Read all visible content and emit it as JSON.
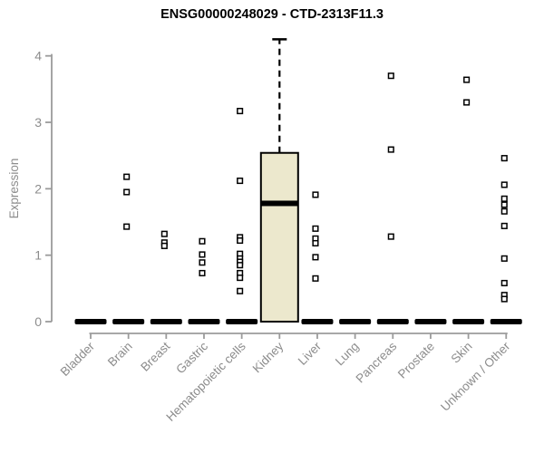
{
  "chart_data": {
    "type": "boxplot",
    "title": "ENSG00000248029 - CTD-2313F11.3",
    "ylabel": "Expression",
    "ylim": [
      0,
      4
    ],
    "yticks": [
      0,
      1,
      2,
      3,
      4
    ],
    "grid": false,
    "legend": "none",
    "categories": [
      "Bladder",
      "Brain",
      "Breast",
      "Gastric",
      "Hematopoietic cells",
      "Kidney",
      "Liver",
      "Lung",
      "Pancreas",
      "Prostate",
      "Skin",
      "Unknown / Other"
    ],
    "series": [
      {
        "label": "Bladder",
        "box": {
          "flat": true,
          "median": 0
        },
        "points": []
      },
      {
        "label": "Brain",
        "box": {
          "flat": true,
          "median": 0
        },
        "points": [
          2.18,
          1.95,
          1.43
        ]
      },
      {
        "label": "Breast",
        "box": {
          "flat": true,
          "median": 0
        },
        "points": [
          1.32,
          1.19,
          1.14
        ]
      },
      {
        "label": "Gastric",
        "box": {
          "flat": true,
          "median": 0
        },
        "points": [
          1.21,
          1.01,
          0.89,
          0.73
        ]
      },
      {
        "label": "Hematopoietic cells",
        "box": {
          "flat": true,
          "median": 0
        },
        "points": [
          3.17,
          2.12,
          1.27,
          1.22,
          1.02,
          0.95,
          0.9,
          0.85,
          0.73,
          0.66,
          0.46
        ]
      },
      {
        "label": "Kidney",
        "box": {
          "flat": false,
          "q1": 0,
          "median": 1.78,
          "q3": 2.54,
          "whisker_high": 4.25,
          "whisker_low": 0
        },
        "points": []
      },
      {
        "label": "Liver",
        "box": {
          "flat": true,
          "median": 0
        },
        "points": [
          1.91,
          1.4,
          1.25,
          1.18,
          0.97,
          0.65
        ]
      },
      {
        "label": "Lung",
        "box": {
          "flat": true,
          "median": 0
        },
        "points": []
      },
      {
        "label": "Pancreas",
        "box": {
          "flat": true,
          "median": 0
        },
        "points": [
          3.7,
          2.59,
          1.28
        ]
      },
      {
        "label": "Prostate",
        "box": {
          "flat": true,
          "median": 0
        },
        "points": []
      },
      {
        "label": "Skin",
        "box": {
          "flat": true,
          "median": 0
        },
        "points": [
          3.64,
          3.3
        ]
      },
      {
        "label": "Unknown / Other",
        "box": {
          "flat": true,
          "median": 0
        },
        "points": [
          2.46,
          2.06,
          1.85,
          1.76,
          1.66,
          1.44,
          0.95,
          0.58,
          0.4,
          0.34
        ]
      }
    ],
    "colors": {
      "box_fill": "#ece8cd",
      "box_stroke": "#000000",
      "flat_bar": "#000000",
      "point_stroke": "#000000",
      "point_fill": "#ffffff",
      "axis_line": "#9b9b9b",
      "axis_text": "#8c8c8c",
      "title_text": "#000000"
    }
  }
}
